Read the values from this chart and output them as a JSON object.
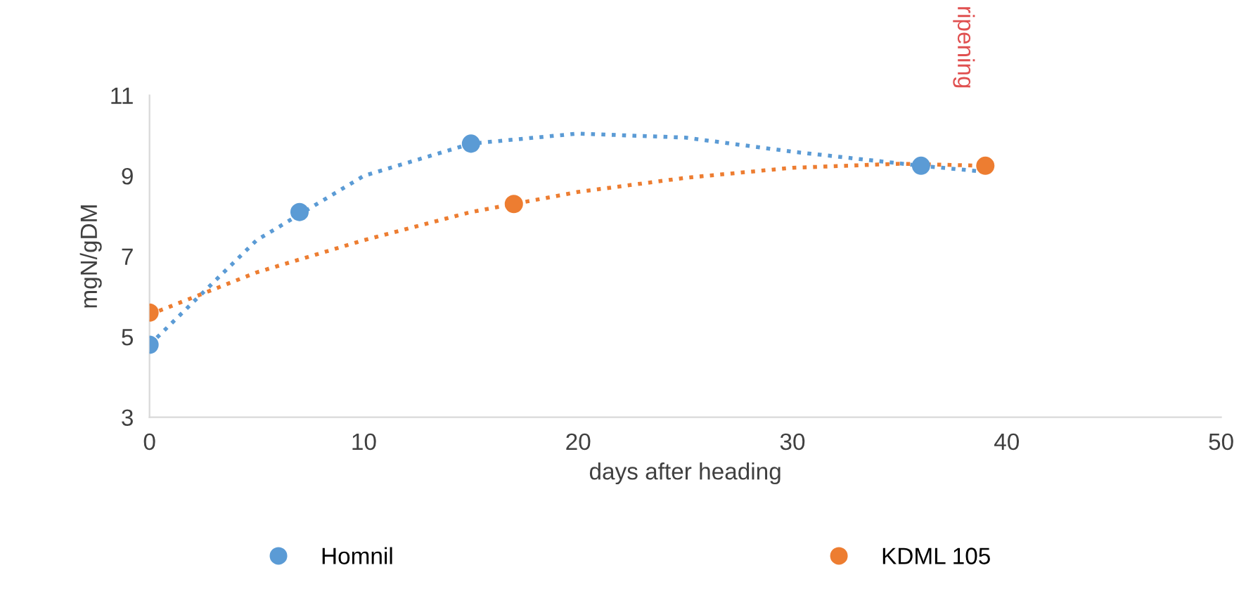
{
  "chart_data": {
    "type": "scatter",
    "xlabel": "days after heading",
    "ylabel": "mgN/gDM",
    "xlim": [
      0,
      50
    ],
    "xticks": [
      0,
      10,
      20,
      30,
      40,
      50
    ],
    "ylim": [
      3,
      11
    ],
    "yticks": [
      3,
      5,
      7,
      9,
      11
    ],
    "grid": false,
    "legend": "bottom",
    "annotations": [
      "ripening"
    ],
    "series": [
      {
        "name": "Homnil",
        "marker": "circle",
        "color": "#5b9bd5",
        "x": [
          0,
          7,
          15,
          36
        ],
        "values": [
          4.8,
          8.1,
          9.8,
          9.25
        ]
      },
      {
        "name": "KDML 105",
        "marker": "circle",
        "color": "#ed7d31",
        "x": [
          0,
          17,
          39
        ],
        "values": [
          5.6,
          8.3,
          9.25
        ]
      },
      {
        "type": "line",
        "line_style": "dotted",
        "color": "#5b9bd5",
        "x": [
          0,
          5,
          10,
          15,
          20,
          25,
          30,
          36,
          39
        ],
        "values": [
          4.8,
          7.4,
          9.0,
          9.8,
          10.05,
          9.95,
          9.6,
          9.25,
          9.1
        ]
      },
      {
        "type": "line",
        "line_style": "dotted",
        "color": "#ed7d31",
        "x": [
          0,
          5,
          10,
          15,
          20,
          25,
          30,
          35,
          39
        ],
        "values": [
          5.55,
          6.6,
          7.4,
          8.1,
          8.6,
          8.95,
          9.2,
          9.3,
          9.25
        ]
      }
    ]
  }
}
